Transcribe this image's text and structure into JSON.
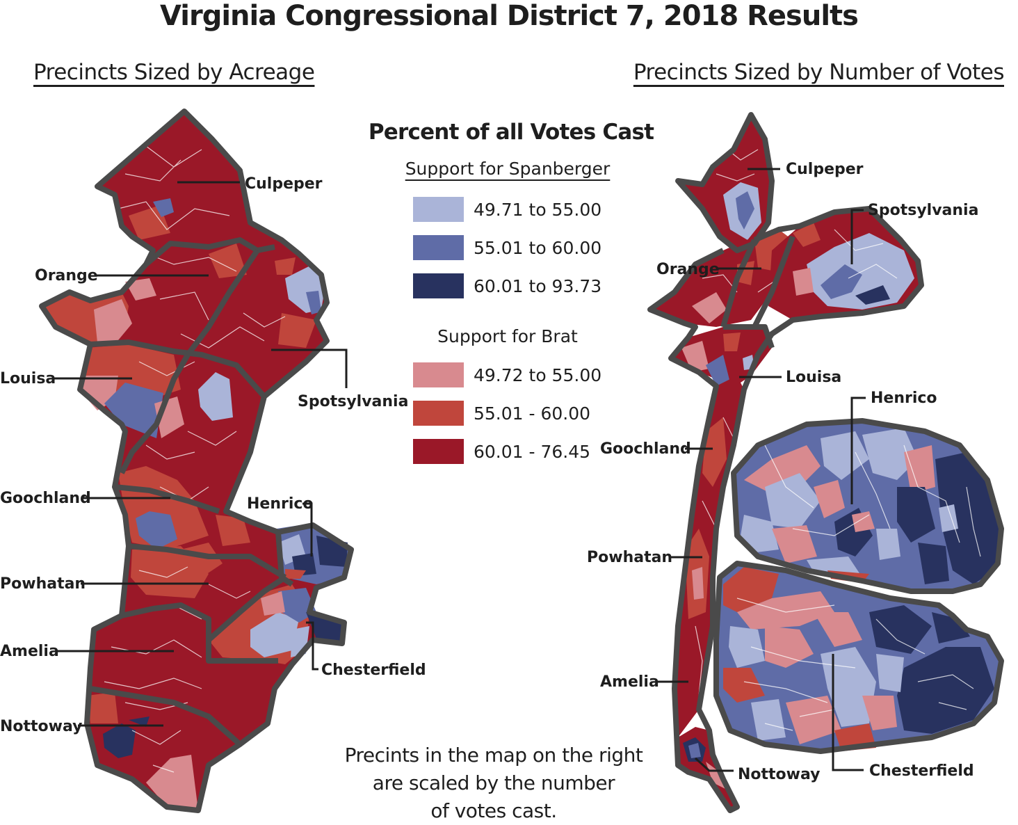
{
  "title": "Virginia Congressional District 7, 2018 Results",
  "left_map": {
    "subtitle": "Precincts Sized by Acreage"
  },
  "right_map": {
    "subtitle": "Precincts Sized by Number of Votes"
  },
  "legend": {
    "title": "Percent of all Votes Cast",
    "spanberger": {
      "title": "Support for Spanberger",
      "items": [
        {
          "label": "49.71 to 55.00",
          "color": "#aab4d8"
        },
        {
          "label": "55.01 to 60.00",
          "color": "#5f6ca7"
        },
        {
          "label": "60.01 to 93.73",
          "color": "#28325f"
        }
      ]
    },
    "brat": {
      "title": "Support for Brat",
      "items": [
        {
          "label": "49.72 to 55.00",
          "color": "#d88a8f"
        },
        {
          "label": "55.01 - 60.00",
          "color": "#c0463c"
        },
        {
          "label": "60.01 - 76.45",
          "color": "#9a1828"
        }
      ]
    }
  },
  "counties": {
    "culpeper": "Culpeper",
    "orange": "Orange",
    "louisa": "Louisa",
    "spotsylvania": "Spotsylvania",
    "goochland": "Goochland",
    "henrico": "Henrico",
    "powhatan": "Powhatan",
    "amelia": "Amelia",
    "chesterfield": "Chesterfield",
    "nottoway": "Nottoway"
  },
  "note": {
    "line1": "Precints in the map on the right",
    "line2": "are scaled by the number",
    "line3": "of votes cast."
  }
}
